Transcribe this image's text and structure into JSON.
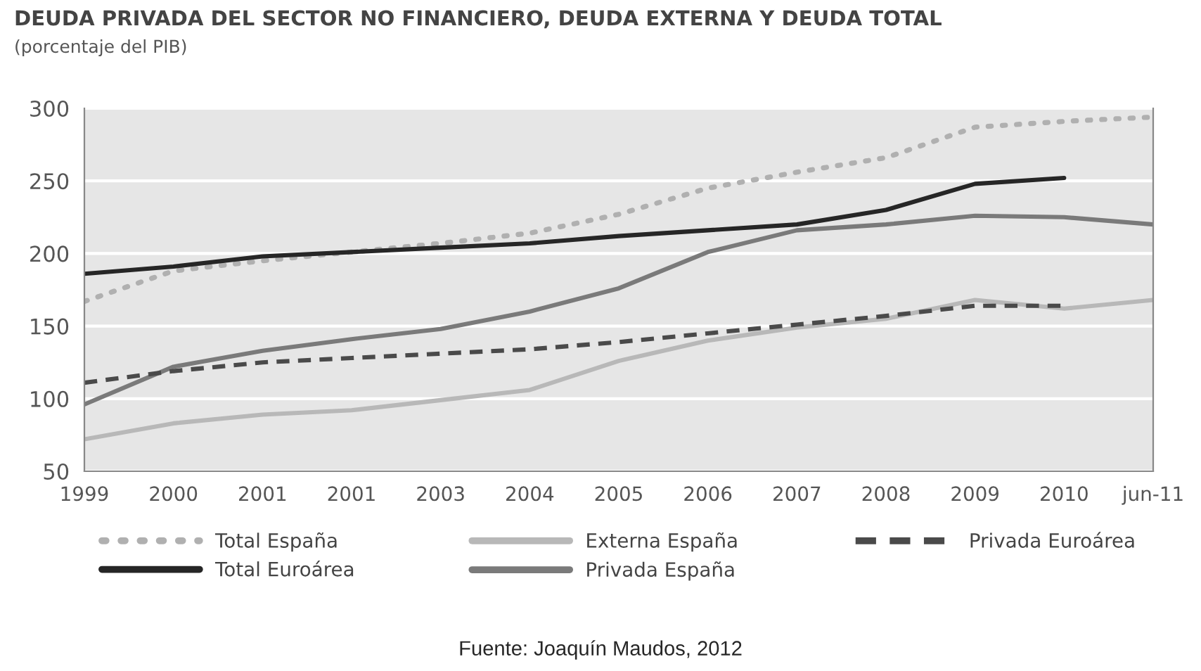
{
  "chart_data": {
    "type": "line",
    "title": "DEUDA PRIVADA DEL SECTOR NO FINANCIERO, DEUDA EXTERNA Y DEUDA TOTAL",
    "subtitle": "(porcentaje del PIB)",
    "categories": [
      "1999",
      "2000",
      "2001",
      "2001",
      "2003",
      "2004",
      "2005",
      "2006",
      "2007",
      "2008",
      "2009",
      "2010",
      "jun-11"
    ],
    "series": [
      {
        "name": "Total España",
        "color": "#b0b0b0",
        "line_style": "dotted",
        "values": [
          167,
          188,
          195,
          201,
          207,
          214,
          227,
          245,
          256,
          266,
          287,
          291,
          294
        ]
      },
      {
        "name": "Total Euroárea",
        "color": "#262626",
        "line_style": "solid",
        "values": [
          186,
          191,
          198,
          201,
          204,
          207,
          212,
          216,
          220,
          230,
          248,
          252,
          null
        ]
      },
      {
        "name": "Externa España",
        "color": "#b8b8b8",
        "line_style": "solid",
        "values": [
          72,
          83,
          89,
          92,
          99,
          106,
          126,
          140,
          149,
          155,
          168,
          162,
          168
        ]
      },
      {
        "name": "Privada España",
        "color": "#7a7a7a",
        "line_style": "solid",
        "values": [
          96,
          122,
          133,
          141,
          148,
          160,
          176,
          201,
          216,
          220,
          226,
          225,
          220
        ]
      },
      {
        "name": "Privada Euroárea",
        "color": "#4a4a4a",
        "line_style": "dashed",
        "values": [
          111,
          119,
          125,
          128,
          131,
          134,
          139,
          145,
          151,
          157,
          164,
          164,
          null
        ]
      }
    ],
    "ylim": [
      50,
      300
    ],
    "yticks": [
      50,
      100,
      150,
      200,
      250,
      300
    ],
    "grid": "y",
    "legend": "bottom",
    "marker": "none",
    "annotations": [
      "Fuente: Joaquín Maudos, 2012"
    ]
  }
}
